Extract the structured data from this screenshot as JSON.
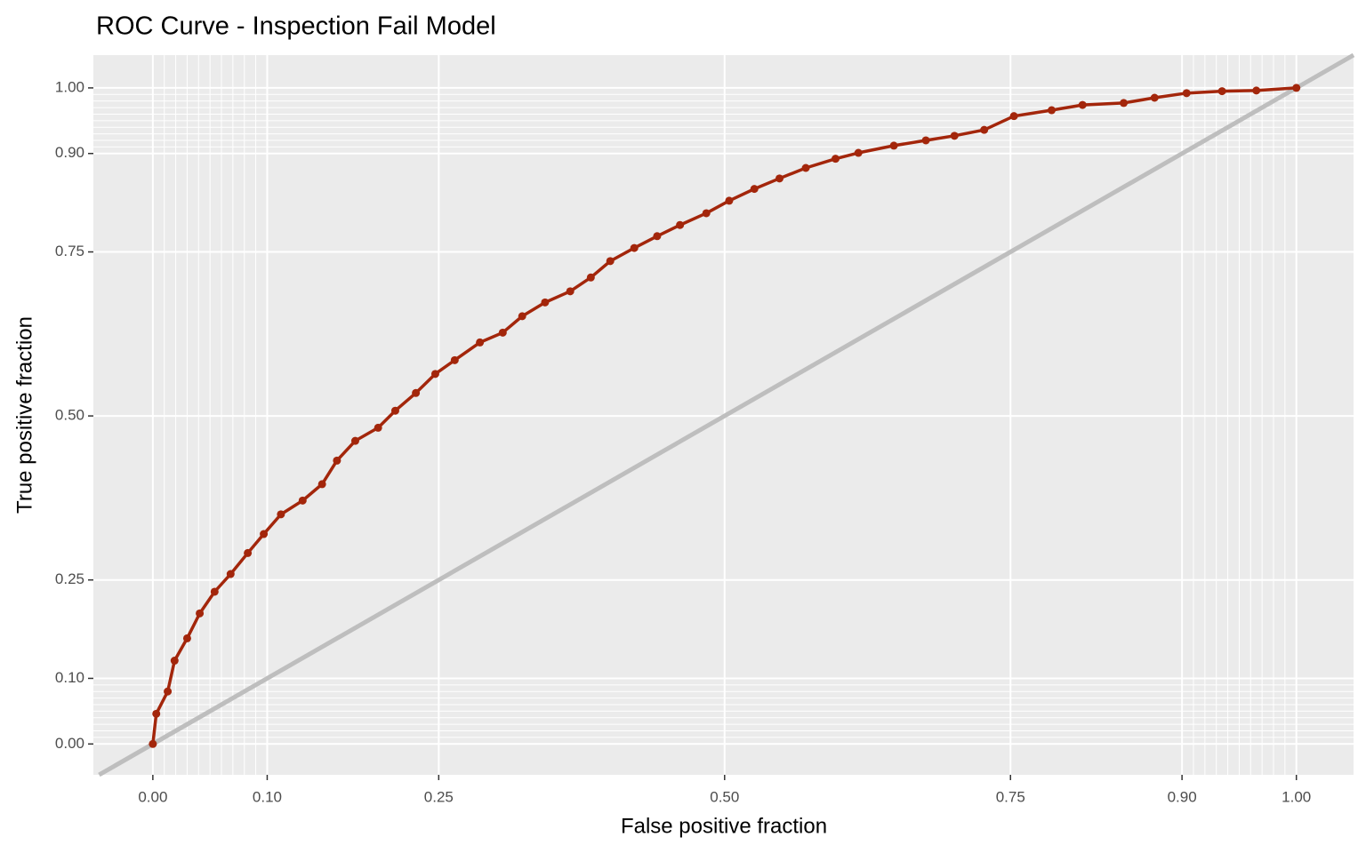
{
  "chart_data": {
    "type": "roc",
    "title": "ROC Curve - Inspection Fail Model",
    "x_label": "False positive fraction",
    "y_label": "True positive fraction",
    "color": "#a3260b",
    "reference_color": "#bebebe",
    "xlim": [
      -0.052,
      1.05
    ],
    "ylim": [
      -0.047,
      1.05
    ],
    "xticks": [
      {
        "value": 0,
        "label": "0.00"
      },
      {
        "value": 0.1,
        "label": "0.10"
      },
      {
        "value": 0.25,
        "label": "0.25"
      },
      {
        "value": 0.5,
        "label": "0.50"
      },
      {
        "value": 0.75,
        "label": "0.75"
      },
      {
        "value": 0.9,
        "label": "0.90"
      },
      {
        "value": 1,
        "label": "1.00"
      }
    ],
    "yticks": [
      {
        "value": 0,
        "label": "0.00"
      },
      {
        "value": 0.1,
        "label": "0.10"
      },
      {
        "value": 0.25,
        "label": "0.25"
      },
      {
        "value": 0.5,
        "label": "0.50"
      },
      {
        "value": 0.75,
        "label": "0.75"
      },
      {
        "value": 0.9,
        "label": "0.90"
      },
      {
        "value": 1,
        "label": "1.00"
      }
    ],
    "minor_ticks": [
      0.01,
      0.02,
      0.03,
      0.04,
      0.05,
      0.06,
      0.07,
      0.08,
      0.09,
      0.91,
      0.92,
      0.93,
      0.94,
      0.95,
      0.96,
      0.97,
      0.98,
      0.99
    ],
    "grid": true,
    "x": [
      0,
      0.003,
      0.013,
      0.019,
      0.03,
      0.041,
      0.054,
      0.068,
      0.083,
      0.097,
      0.112,
      0.131,
      0.148,
      0.161,
      0.177,
      0.197,
      0.212,
      0.23,
      0.247,
      0.264,
      0.286,
      0.306,
      0.323,
      0.343,
      0.365,
      0.383,
      0.4,
      0.421,
      0.441,
      0.461,
      0.484,
      0.504,
      0.526,
      0.548,
      0.571,
      0.597,
      0.617,
      0.648,
      0.676,
      0.701,
      0.727,
      0.753,
      0.786,
      0.813,
      0.849,
      0.876,
      0.904,
      0.935,
      0.965,
      1
    ],
    "values": [
      0,
      0.046,
      0.08,
      0.127,
      0.161,
      0.199,
      0.232,
      0.259,
      0.291,
      0.32,
      0.35,
      0.371,
      0.396,
      0.432,
      0.462,
      0.482,
      0.508,
      0.535,
      0.564,
      0.585,
      0.612,
      0.627,
      0.652,
      0.673,
      0.69,
      0.711,
      0.736,
      0.756,
      0.774,
      0.791,
      0.809,
      0.828,
      0.846,
      0.862,
      0.878,
      0.892,
      0.901,
      0.912,
      0.92,
      0.927,
      0.936,
      0.957,
      0.966,
      0.974,
      0.977,
      0.985,
      0.992,
      0.995,
      0.996,
      1
    ]
  }
}
